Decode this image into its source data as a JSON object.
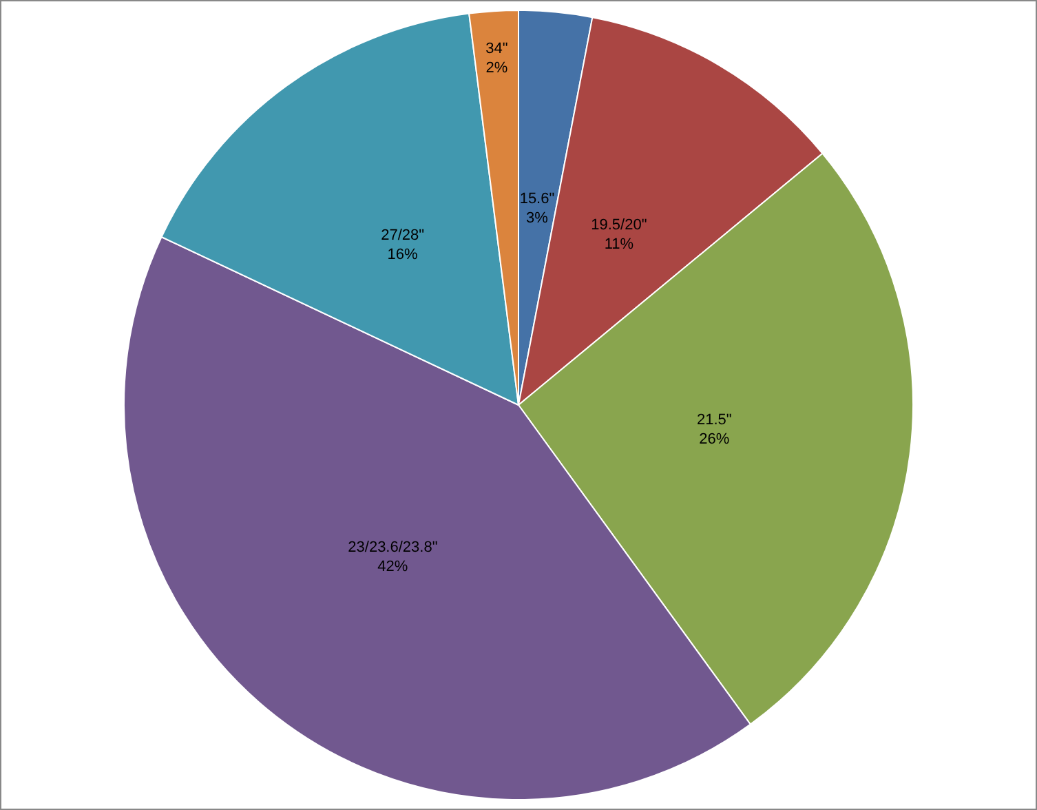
{
  "chart_data": {
    "type": "pie",
    "categories": [
      "15.6\"",
      "19.5/20\"",
      "21.5\"",
      "23/23.6/23.8\"",
      "27/28\"",
      "34\""
    ],
    "values": [
      3,
      11,
      26,
      42,
      16,
      2
    ],
    "value_labels": [
      "3%",
      "11%",
      "26%",
      "42%",
      "16%",
      "2%"
    ],
    "colors": [
      "#4572a7",
      "#aa4643",
      "#89a54e",
      "#71588f",
      "#4198af",
      "#db843d"
    ],
    "legend": false
  }
}
